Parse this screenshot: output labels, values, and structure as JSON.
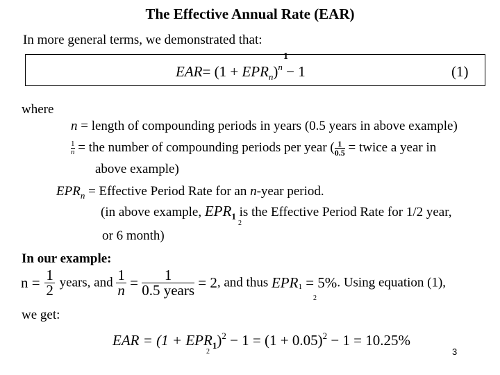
{
  "title": "The Effective Annual Rate (EAR)",
  "intro": "In more general terms, we demonstrated that:",
  "equation1": {
    "lhs": "EAR",
    "eq": "= (1 + ",
    "epr": "EPR",
    "epr_sub": "n",
    "close": ")",
    "exp_top": "1",
    "exp": "n",
    "tail": " − 1",
    "number": "(1)"
  },
  "where": "where",
  "def_n": {
    "var": "n",
    "text": " = length of compounding periods in years (0.5 years in above example)"
  },
  "def_1n": {
    "num": "1",
    "den": "n",
    "text": " = the number of compounding periods per year (",
    "inner_num": "1",
    "inner_den": "0.5",
    "text2": " = twice a year in",
    "line2": "above example)"
  },
  "def_epr": {
    "var": "EPR",
    "sub": "n",
    "text": " = Effective Period Rate for an ",
    "nvar": "n",
    "text2": "-year period.",
    "line2_a": "(in above example, ",
    "epr": "EPR",
    "epr_sub": "1",
    "epr_sub2": "2",
    "line2_b": " is the Effective Period Rate for 1/2 year,",
    "line3": "or 6 month)"
  },
  "example_heading": "In our example:",
  "example": {
    "n": "n =",
    "f1_num": "1",
    "f1_den": "2",
    "t1": " years, and ",
    "f2_num": "1",
    "f2_den": "n",
    "eq": " = ",
    "f3_num": "1",
    "f3_den": "0.5 years",
    "t2": " = 2",
    "t3": ", and  thus ",
    "epr": "EPR",
    "epr_sub": "1",
    "epr_sub2": "2",
    "t4": " = 5%",
    "t5": ". Using equation (1),"
  },
  "we_get": "we get:",
  "result": {
    "a": "EAR = (1 + ",
    "epr": "EPR",
    "sub1": "1",
    "sub2": "2",
    "b": ")",
    "exp1": "2",
    "c": " − 1 = (1 + 0.05)",
    "exp2": "2",
    "d": " − 1 = 10.25%"
  },
  "page_number": "3"
}
